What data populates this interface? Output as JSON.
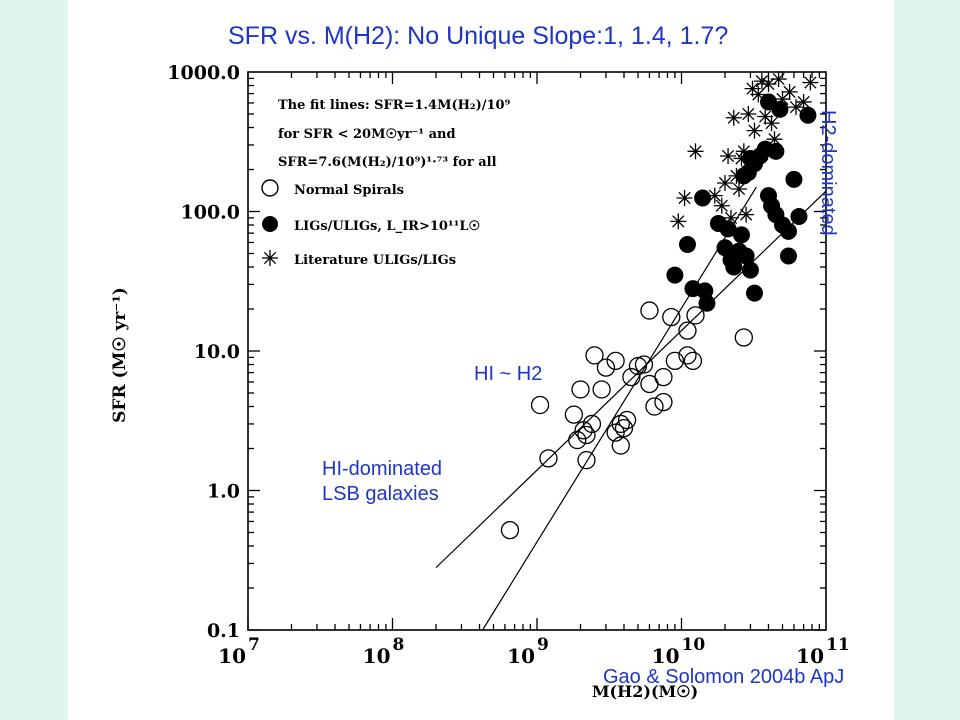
{
  "title": "SFR vs. M(H2): No Unique Slope:1, 1.4, 1.7?",
  "annotations": {
    "hi_h2": "HI ~ H2",
    "hi_dominated_line1": "HI-dominated",
    "hi_dominated_line2": "LSB galaxies",
    "h2_dominated": "H2-dominated"
  },
  "citation": "Gao & Solomon 2004b ApJ",
  "colors": {
    "annotation": "#1e35c8",
    "background": "#dff5f0",
    "plot_ink": "#000000"
  },
  "chart_data": {
    "type": "scatter",
    "xlabel": "M(H2)(M☉)",
    "ylabel": "SFR (M☉ yr⁻¹)",
    "x_scale": "log",
    "y_scale": "log",
    "xlim": [
      10000000.0,
      100000000000.0
    ],
    "ylim": [
      0.1,
      1000
    ],
    "x_ticks": [
      {
        "value": 10000000.0,
        "label_base": "10",
        "label_exp": "7"
      },
      {
        "value": 100000000.0,
        "label_base": "10",
        "label_exp": "8"
      },
      {
        "value": 1000000000.0,
        "label_base": "10",
        "label_exp": "9"
      },
      {
        "value": 10000000000.0,
        "label_base": "10",
        "label_exp": "10"
      },
      {
        "value": 100000000000.0,
        "label_base": "10",
        "label_exp": "11"
      }
    ],
    "y_ticks": [
      {
        "value": 0.1,
        "label": "0.1"
      },
      {
        "value": 1,
        "label": "1.0"
      },
      {
        "value": 10,
        "label": "10.0"
      },
      {
        "value": 100,
        "label": "100.0"
      },
      {
        "value": 1000,
        "label": "1000.0"
      }
    ],
    "legend_text": {
      "fit_line1": "The fit lines: SFR=1.4M(H₂)/10⁹",
      "fit_line2": "for SFR < 20M☉yr⁻¹ and",
      "fit_line3": "SFR=7.6(M(H₂)/10⁹)¹·⁷³ for all"
    },
    "fit_lines": [
      {
        "name": "slope 1",
        "points": [
          [
            200000000.0,
            0.28
          ],
          [
            100000000000.0,
            140
          ]
        ]
      },
      {
        "name": "slope 1.73",
        "points": [
          [
            420000000.0,
            0.1
          ],
          [
            33000000000.0,
            150
          ]
        ]
      }
    ],
    "series": [
      {
        "name": "Normal Spirals",
        "marker": "open-circle",
        "points": [
          [
            650000000.0,
            0.52
          ],
          [
            1050000000.0,
            4.1
          ],
          [
            1200000000.0,
            1.7
          ],
          [
            1800000000.0,
            3.5
          ],
          [
            1900000000.0,
            2.3
          ],
          [
            2000000000.0,
            5.3
          ],
          [
            2100000000.0,
            2.7
          ],
          [
            2200000000.0,
            1.65
          ],
          [
            2200000000.0,
            2.5
          ],
          [
            2400000000.0,
            3.0
          ],
          [
            2500000000.0,
            9.3
          ],
          [
            2800000000.0,
            5.3
          ],
          [
            3000000000.0,
            7.6
          ],
          [
            3500000000.0,
            2.6
          ],
          [
            3500000000.0,
            8.5
          ],
          [
            3800000000.0,
            2.1
          ],
          [
            3800000000.0,
            3.0
          ],
          [
            4000000000.0,
            2.8
          ],
          [
            4200000000.0,
            3.2
          ],
          [
            4500000000.0,
            6.5
          ],
          [
            5000000000.0,
            7.8
          ],
          [
            5500000000.0,
            8.0
          ],
          [
            6000000000.0,
            5.8
          ],
          [
            6500000000.0,
            4.0
          ],
          [
            6000000000.0,
            19.5
          ],
          [
            7500000000.0,
            4.3
          ],
          [
            7500000000.0,
            6.5
          ],
          [
            8500000000.0,
            17.5
          ],
          [
            9000000000.0,
            8.5
          ],
          [
            11000000000.0,
            9.3
          ],
          [
            12000000000.0,
            8.5
          ],
          [
            11000000000.0,
            14
          ],
          [
            12500000000.0,
            18
          ],
          [
            27000000000.0,
            12.5
          ]
        ]
      },
      {
        "name": "LIGs/ULIGs, L_IR>10¹¹L☉",
        "marker": "filled-circle",
        "points": [
          [
            9000000000.0,
            35
          ],
          [
            11000000000.0,
            58
          ],
          [
            12000000000.0,
            28
          ],
          [
            14500000000.0,
            27
          ],
          [
            15000000000.0,
            22
          ],
          [
            14000000000.0,
            125
          ],
          [
            18000000000.0,
            82
          ],
          [
            20000000000.0,
            55
          ],
          [
            21000000000.0,
            75
          ],
          [
            22000000000.0,
            45
          ],
          [
            23000000000.0,
            40
          ],
          [
            25000000000.0,
            52
          ],
          [
            26000000000.0,
            68
          ],
          [
            28000000000.0,
            48
          ],
          [
            27000000000.0,
            180
          ],
          [
            29000000000.0,
            190
          ],
          [
            30000000000.0,
            38
          ],
          [
            32000000000.0,
            26
          ],
          [
            30000000000.0,
            240
          ],
          [
            32000000000.0,
            220
          ],
          [
            35000000000.0,
            250
          ],
          [
            38000000000.0,
            280
          ],
          [
            40000000000.0,
            130
          ],
          [
            42000000000.0,
            110
          ],
          [
            45000000000.0,
            95
          ],
          [
            45000000000.0,
            270
          ],
          [
            50000000000.0,
            80
          ],
          [
            55000000000.0,
            48
          ],
          [
            55000000000.0,
            72
          ],
          [
            60000000000.0,
            170
          ],
          [
            65000000000.0,
            92
          ],
          [
            40000000000.0,
            610
          ],
          [
            48000000000.0,
            540
          ],
          [
            75000000000.0,
            490
          ]
        ]
      },
      {
        "name": "Literature ULIGs/LIGs",
        "marker": "asterisk",
        "points": [
          [
            9500000000.0,
            85
          ],
          [
            10500000000.0,
            125
          ],
          [
            12500000000.0,
            270
          ],
          [
            17000000000.0,
            130
          ],
          [
            19000000000.0,
            110
          ],
          [
            20000000000.0,
            160
          ],
          [
            21000000000.0,
            250
          ],
          [
            22000000000.0,
            90
          ],
          [
            23000000000.0,
            470
          ],
          [
            24000000000.0,
            180
          ],
          [
            25000000000.0,
            145
          ],
          [
            26000000000.0,
            240
          ],
          [
            27000000000.0,
            270
          ],
          [
            28000000000.0,
            95
          ],
          [
            29000000000.0,
            500
          ],
          [
            30000000000.0,
            230
          ],
          [
            31000000000.0,
            760
          ],
          [
            32000000000.0,
            380
          ],
          [
            34000000000.0,
            690
          ],
          [
            36000000000.0,
            860
          ],
          [
            38000000000.0,
            480
          ],
          [
            40000000000.0,
            820
          ],
          [
            42000000000.0,
            430
          ],
          [
            44000000000.0,
            330
          ],
          [
            47000000000.0,
            890
          ],
          [
            50000000000.0,
            640
          ],
          [
            56000000000.0,
            720
          ],
          [
            62000000000.0,
            560
          ],
          [
            70000000000.0,
            610
          ],
          [
            78000000000.0,
            840
          ]
        ]
      }
    ]
  }
}
